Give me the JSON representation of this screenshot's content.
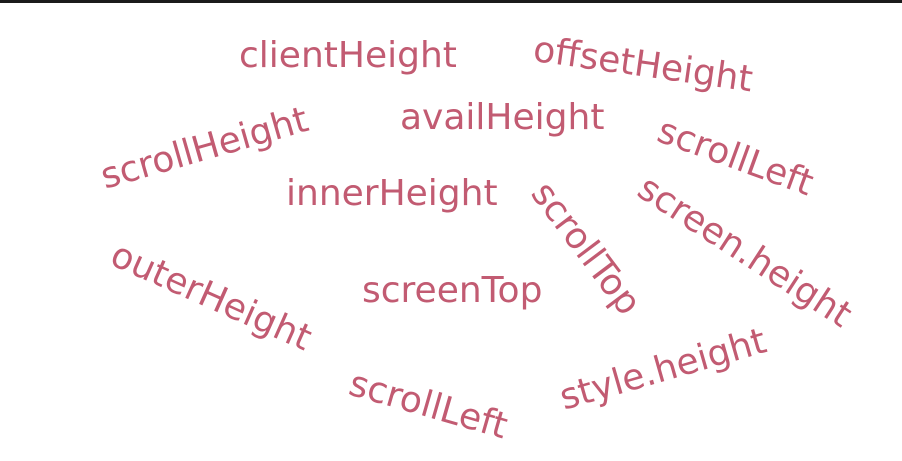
{
  "theme": {
    "text_color": "#c25b72",
    "background": "#ffffff",
    "top_bar_color": "#1b1b1b"
  },
  "words": {
    "client_height": "clientHeight",
    "offset_height": "offsetHeight",
    "avail_height": "availHeight",
    "scroll_height": "scrollHeight",
    "scroll_left_1": "scrollLeft",
    "inner_height": "innerHeight",
    "scroll_top": "scrollTop",
    "screen_height": "screen.height",
    "outer_height": "outerHeight",
    "screen_top": "screenTop",
    "style_height": "style.height",
    "scroll_left_2": "scrollLeft"
  }
}
